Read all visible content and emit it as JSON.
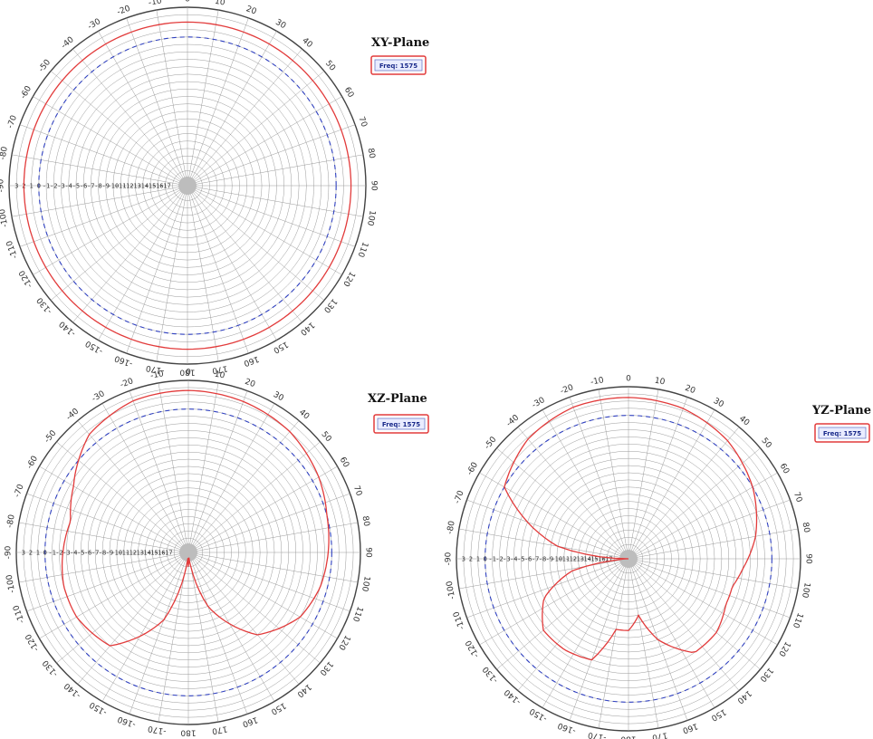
{
  "chart_data": [
    {
      "type": "polar",
      "title": "XY-Plane",
      "legend": "Freq: 1575",
      "angle_ticks": [
        "0",
        "10",
        "20",
        "30",
        "40",
        "50",
        "60",
        "70",
        "80",
        "90",
        "100",
        "110",
        "120",
        "130",
        "140",
        "150",
        "160",
        "170",
        "180",
        "-170",
        "-160",
        "-150",
        "-140",
        "-130",
        "-120",
        "-110",
        "-100",
        "-90",
        "-80",
        "-70",
        "-60",
        "-50",
        "-40",
        "-30",
        "-20",
        "-10"
      ],
      "radial_ticks": [
        "3",
        "2",
        "1",
        "0",
        "-1",
        "-2",
        "-3",
        "-4",
        "-5",
        "-6",
        "-7",
        "-8",
        "-9",
        "-10",
        "-11",
        "-12",
        "-13",
        "-14",
        "-15",
        "-16",
        "-17"
      ],
      "rlim": [
        -20,
        4
      ],
      "reference_level": 0,
      "series": [
        {
          "color": "#e23b3b",
          "angle": [
            0,
            30,
            60,
            90,
            120,
            150,
            180,
            210,
            240,
            270,
            300,
            330,
            360
          ],
          "gain": [
            2,
            2,
            2,
            2,
            2,
            2,
            2,
            2,
            2,
            2,
            2,
            2,
            2
          ]
        }
      ]
    },
    {
      "type": "polar",
      "title": "XZ-Plane",
      "legend": "Freq: 1575",
      "angle_ticks": [
        "0",
        "10",
        "20",
        "30",
        "40",
        "50",
        "60",
        "70",
        "80",
        "90",
        "100",
        "110",
        "120",
        "130",
        "140",
        "150",
        "160",
        "170",
        "180",
        "-170",
        "-160",
        "-150",
        "-140",
        "-130",
        "-120",
        "-110",
        "-100",
        "-90",
        "-80",
        "-70",
        "-60",
        "-50",
        "-40",
        "-30",
        "-20",
        "-10"
      ],
      "radial_ticks": [
        "3",
        "2",
        "1",
        "0",
        "-1",
        "-2",
        "-3",
        "-4",
        "-5",
        "-6",
        "-7",
        "-8",
        "-9",
        "-10",
        "-11",
        "-12",
        "-13",
        "-14",
        "-15",
        "-16",
        "-17"
      ],
      "rlim": [
        -20,
        4
      ],
      "reference_level": 0,
      "series": [
        {
          "color": "#e23b3b",
          "angle": [
            0,
            20,
            40,
            60,
            75,
            90,
            105,
            120,
            140,
            160,
            170,
            175,
            180,
            185,
            190,
            200,
            220,
            240,
            255,
            270,
            285,
            300,
            320,
            340,
            360
          ],
          "gain": [
            2.6,
            2.4,
            2,
            1,
            0,
            -0.5,
            -1,
            -2,
            -5,
            -12,
            -18,
            -19.5,
            -18,
            -19.5,
            -17,
            -10,
            -3,
            -2,
            -2,
            -2.5,
            -3,
            -1.5,
            1.5,
            2.5,
            2.6
          ]
        }
      ]
    },
    {
      "type": "polar",
      "title": "YZ-Plane",
      "legend": "Freq: 1575",
      "angle_ticks": [
        "0",
        "10",
        "20",
        "30",
        "40",
        "50",
        "60",
        "70",
        "80",
        "90",
        "100",
        "110",
        "120",
        "130",
        "140",
        "150",
        "160",
        "170",
        "180",
        "-170",
        "-160",
        "-150",
        "-140",
        "-130",
        "-120",
        "-110",
        "-100",
        "-90",
        "-80",
        "-70",
        "-60",
        "-50",
        "-40",
        "-30",
        "-20",
        "-10"
      ],
      "radial_ticks": [
        "3",
        "2",
        "1",
        "0",
        "-1",
        "-2",
        "-3",
        "-4",
        "-5",
        "-6",
        "-7",
        "-8",
        "-9",
        "-10",
        "-11",
        "-12",
        "-13",
        "-14",
        "-15",
        "-16",
        "-17"
      ],
      "rlim": [
        -20,
        4
      ],
      "reference_level": 0,
      "series": [
        {
          "color": "#e23b3b",
          "angle": [
            0,
            20,
            40,
            60,
            80,
            95,
            105,
            115,
            130,
            145,
            160,
            170,
            180,
            190,
            200,
            215,
            230,
            245,
            258,
            265,
            270,
            280,
            300,
            320,
            340,
            360
          ],
          "gain": [
            2.5,
            2.3,
            1.5,
            0,
            -2,
            -4,
            -5,
            -5,
            -4,
            -4,
            -8,
            -12,
            -10,
            -10,
            -5,
            -4.5,
            -4.5,
            -7,
            -12,
            -19,
            -20,
            -10,
            0,
            1.8,
            2.5,
            2.5
          ]
        }
      ]
    }
  ]
}
